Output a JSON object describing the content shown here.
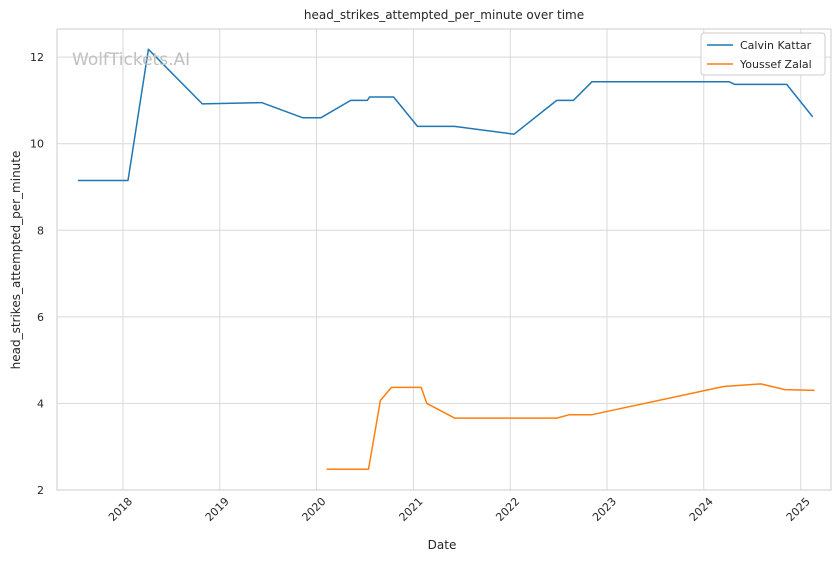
{
  "watermark": "WolfTickets.AI",
  "chart_data": {
    "type": "line",
    "title": "head_strikes_attempted_per_minute over time",
    "xlabel": "Date",
    "ylabel": "head_strikes_attempted_per_minute",
    "xlim": [
      "2017-04-27",
      "2025-04-25"
    ],
    "ylim": [
      2,
      12.65
    ],
    "x_ticks": [
      "2018-01-01",
      "2019-01-01",
      "2020-01-01",
      "2021-01-01",
      "2022-01-01",
      "2023-01-01",
      "2024-01-01",
      "2025-01-01"
    ],
    "x_tick_labels": [
      "2018",
      "2019",
      "2020",
      "2021",
      "2022",
      "2023",
      "2024",
      "2025"
    ],
    "y_ticks": [
      2,
      4,
      6,
      8,
      10,
      12
    ],
    "grid": true,
    "legend": "top-right",
    "series": [
      {
        "name": "Calvin Kattar",
        "color": "#1f77b4",
        "points": [
          [
            "2017-07-15",
            9.15
          ],
          [
            "2018-01-20",
            9.15
          ],
          [
            "2018-04-07",
            12.18
          ],
          [
            "2018-10-27",
            10.92
          ],
          [
            "2019-06-08",
            10.95
          ],
          [
            "2019-11-09",
            10.6
          ],
          [
            "2020-01-18",
            10.6
          ],
          [
            "2020-05-09",
            11.0
          ],
          [
            "2020-07-11",
            11.0
          ],
          [
            "2020-07-19",
            11.08
          ],
          [
            "2020-10-18",
            11.08
          ],
          [
            "2021-01-16",
            10.4
          ],
          [
            "2021-06-05",
            10.4
          ],
          [
            "2022-01-15",
            10.22
          ],
          [
            "2022-06-25",
            11.0
          ],
          [
            "2022-08-27",
            11.0
          ],
          [
            "2022-11-05",
            11.43
          ],
          [
            "2024-04-06",
            11.43
          ],
          [
            "2024-04-27",
            11.37
          ],
          [
            "2024-11-09",
            11.37
          ],
          [
            "2025-02-15",
            10.62
          ]
        ]
      },
      {
        "name": "Youssef Zalal",
        "color": "#ff7f0e",
        "points": [
          [
            "2020-02-08",
            2.48
          ],
          [
            "2020-07-15",
            2.48
          ],
          [
            "2020-08-29",
            4.07
          ],
          [
            "2020-10-10",
            4.37
          ],
          [
            "2021-01-30",
            4.37
          ],
          [
            "2021-02-20",
            4.0
          ],
          [
            "2021-06-05",
            3.66
          ],
          [
            "2022-06-25",
            3.66
          ],
          [
            "2022-08-13",
            3.74
          ],
          [
            "2022-11-05",
            3.74
          ],
          [
            "2024-03-16",
            4.39
          ],
          [
            "2024-08-03",
            4.45
          ],
          [
            "2024-11-02",
            4.32
          ],
          [
            "2025-02-22",
            4.3
          ]
        ]
      }
    ]
  }
}
